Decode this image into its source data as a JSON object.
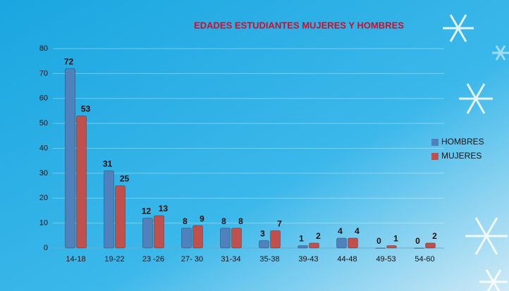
{
  "chart_data": {
    "type": "bar",
    "title": "EDADES  ESTUDIANTES  MUJERES  Y HOMBRES",
    "categories": [
      "14-18",
      "19-22",
      "23 -26",
      "27- 30",
      "31-34",
      "35-38",
      "39-43",
      "44-48",
      "49-53",
      "54-60"
    ],
    "series": [
      {
        "name": "HOMBRES",
        "color": "#4f81bd",
        "values": [
          72,
          31,
          12,
          8,
          8,
          3,
          1,
          4,
          0,
          0
        ]
      },
      {
        "name": "MUJERES",
        "color": "#c0504d",
        "values": [
          53,
          25,
          13,
          9,
          8,
          7,
          2,
          4,
          1,
          2
        ]
      }
    ],
    "ylim": [
      0,
      80
    ],
    "yticks": [
      0,
      10,
      20,
      30,
      40,
      50,
      60,
      70,
      80
    ],
    "grid": true,
    "legend": "right"
  }
}
